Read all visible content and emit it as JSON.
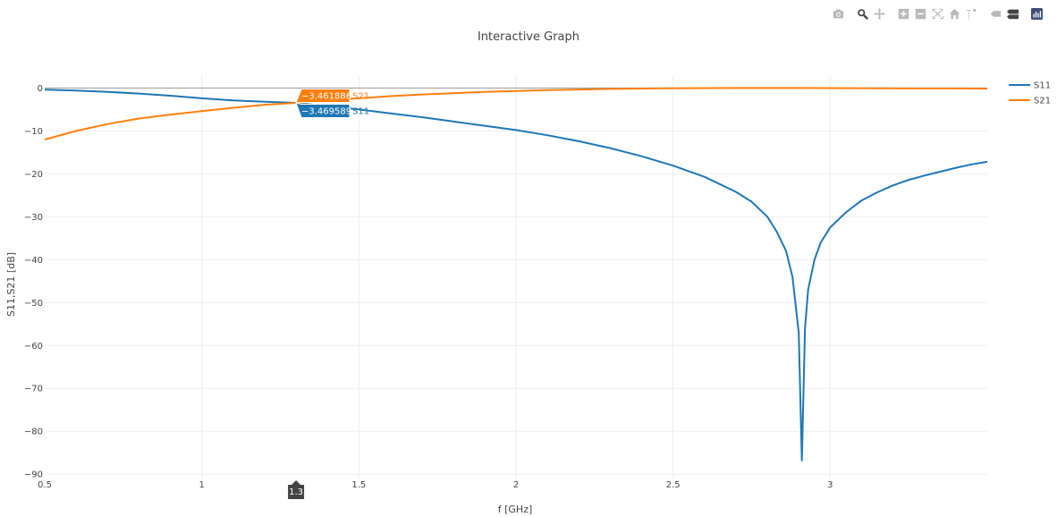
{
  "title": "Interactive Graph",
  "modebar": {
    "buttons": [
      "camera-icon",
      "zoom-icon",
      "pan-icon",
      "zoom-in-icon",
      "zoom-out-icon",
      "autoscale-icon",
      "reset-axes-icon",
      "spike-lines-icon",
      "hover-closest-icon",
      "hover-compare-icon",
      "plotly-logo-icon"
    ]
  },
  "chart_data": {
    "type": "line",
    "title": "Interactive Graph",
    "xlabel": "f [GHz]",
    "ylabel": "S11,S21 [dB]",
    "xlim": [
      0.5,
      3.5
    ],
    "ylim": [
      -91,
      3
    ],
    "xticks": [
      0.5,
      1,
      1.5,
      2,
      2.5,
      3
    ],
    "xtick_labels": [
      "0.5",
      "1",
      "1.5",
      "2",
      "2.5",
      "3"
    ],
    "yticks": [
      0,
      -10,
      -20,
      -30,
      -40,
      -50,
      -60,
      -70,
      -80,
      -90
    ],
    "ytick_labels": [
      "0",
      "−10",
      "−20",
      "−30",
      "−40",
      "−50",
      "−60",
      "−70",
      "−80",
      "−90"
    ],
    "grid": true,
    "legend_position": "top-right",
    "colors": {
      "S11": "#1f77b4",
      "S21": "#ff7f0e"
    },
    "series": [
      {
        "name": "S11",
        "x": [
          0.5,
          0.6,
          0.7,
          0.8,
          0.9,
          1.0,
          1.1,
          1.2,
          1.3,
          1.4,
          1.5,
          1.6,
          1.7,
          1.8,
          1.9,
          2.0,
          2.1,
          2.2,
          2.3,
          2.4,
          2.5,
          2.6,
          2.7,
          2.75,
          2.8,
          2.83,
          2.86,
          2.88,
          2.9,
          2.91,
          2.92,
          2.93,
          2.95,
          2.97,
          3.0,
          3.05,
          3.1,
          3.15,
          3.2,
          3.25,
          3.3,
          3.35,
          3.4,
          3.45,
          3.5
        ],
        "y": [
          -0.4,
          -0.6,
          -0.9,
          -1.3,
          -1.8,
          -2.4,
          -2.9,
          -3.2,
          -3.47,
          -4.2,
          -5.0,
          -5.9,
          -6.8,
          -7.8,
          -8.8,
          -9.8,
          -11.0,
          -12.4,
          -14.0,
          -15.9,
          -18.1,
          -20.7,
          -24.2,
          -26.5,
          -30.0,
          -33.5,
          -38.0,
          -44.0,
          -57.0,
          -86.8,
          -56.0,
          -47.0,
          -40.0,
          -36.0,
          -32.5,
          -29.0,
          -26.2,
          -24.3,
          -22.7,
          -21.4,
          -20.4,
          -19.5,
          -18.6,
          -17.8,
          -17.2
        ]
      },
      {
        "name": "S21",
        "x": [
          0.5,
          0.6,
          0.7,
          0.8,
          0.9,
          1.0,
          1.1,
          1.2,
          1.3,
          1.4,
          1.5,
          1.6,
          1.7,
          1.8,
          1.9,
          2.0,
          2.1,
          2.2,
          2.3,
          2.4,
          2.5,
          2.6,
          2.7,
          2.8,
          2.9,
          3.0,
          3.1,
          3.2,
          3.3,
          3.4,
          3.5
        ],
        "y": [
          -12.0,
          -10.0,
          -8.4,
          -7.1,
          -6.2,
          -5.4,
          -4.6,
          -3.9,
          -3.46,
          -2.9,
          -2.4,
          -1.9,
          -1.5,
          -1.2,
          -0.9,
          -0.7,
          -0.5,
          -0.35,
          -0.22,
          -0.12,
          -0.05,
          -0.02,
          -0.01,
          0.0,
          -0.01,
          -0.02,
          -0.05,
          -0.08,
          -0.1,
          -0.11,
          -0.12
        ]
      }
    ],
    "hover": {
      "x_label": "1.3",
      "x_value": 1.3,
      "points": [
        {
          "series": "S21",
          "value": -3.461886,
          "label": "−3.461886",
          "name": "S21"
        },
        {
          "series": "S11",
          "value": -3.469589,
          "label": "−3.469589",
          "name": "S11"
        }
      ]
    }
  }
}
